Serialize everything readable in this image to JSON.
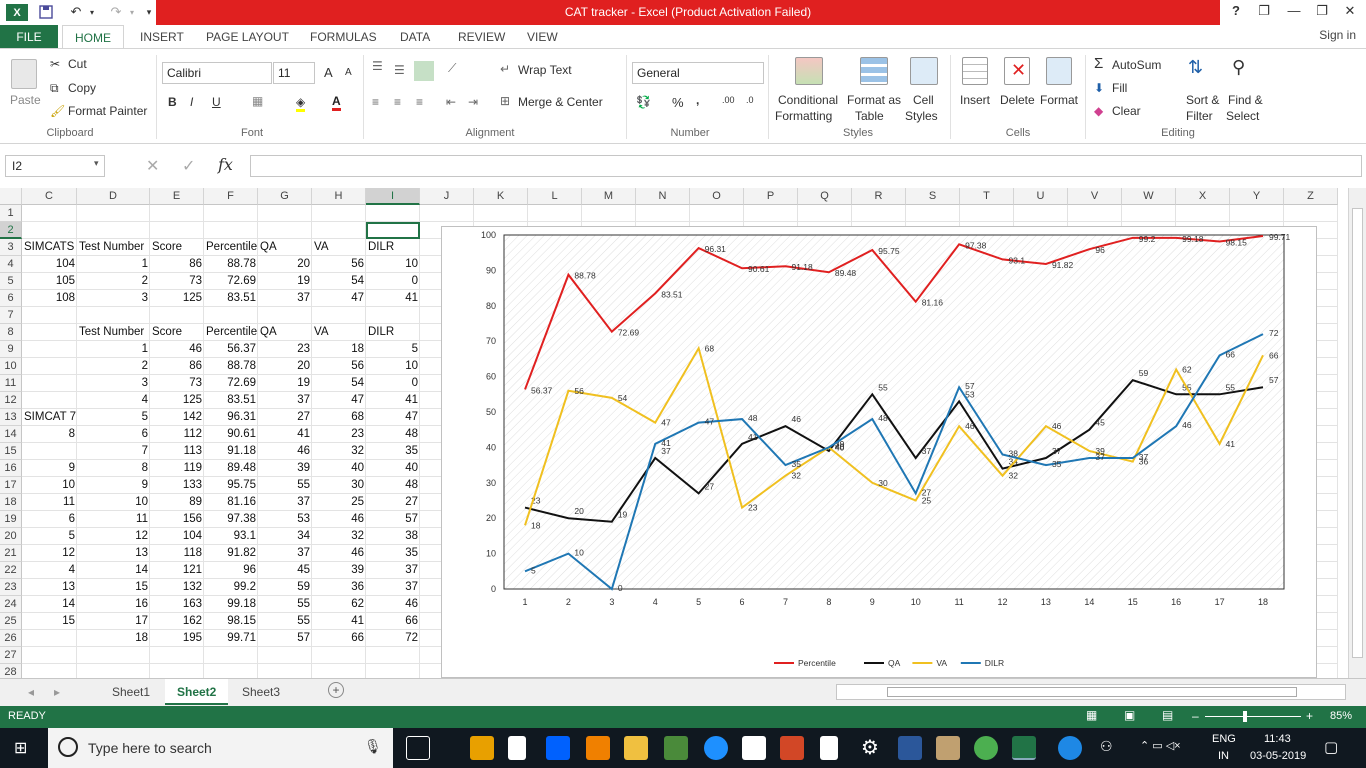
{
  "window": {
    "title": "CAT tracker  -  Excel (Product Activation Failed)",
    "help": "?",
    "minimize": "—",
    "restore": "❐",
    "close": "✕"
  },
  "tabs": {
    "file": "FILE",
    "items": [
      "HOME",
      "INSERT",
      "PAGE LAYOUT",
      "FORMULAS",
      "DATA",
      "REVIEW",
      "VIEW"
    ],
    "signin": "Sign in"
  },
  "ribbon": {
    "clipboard": {
      "label": "Clipboard",
      "paste": "Paste",
      "cut": "Cut",
      "copy": "Copy",
      "format_painter": "Format Painter"
    },
    "font": {
      "label": "Font",
      "name": "Calibri",
      "size": "11",
      "bold": "B",
      "italic": "I",
      "underline": "U",
      "grow": "A",
      "shrink": "A"
    },
    "alignment": {
      "label": "Alignment",
      "wrap": "Wrap Text",
      "merge": "Merge & Center"
    },
    "number": {
      "label": "Number",
      "format": "General",
      "percent": "%",
      "comma": ",",
      "inc": ".00",
      "dec": ".0"
    },
    "styles": {
      "label": "Styles",
      "conditional": [
        "Conditional",
        "Formatting"
      ],
      "table": [
        "Format as",
        "Table"
      ],
      "cell": [
        "Cell",
        "Styles"
      ]
    },
    "cells": {
      "label": "Cells",
      "insert": "Insert",
      "delete": "Delete",
      "format": "Format"
    },
    "editing": {
      "label": "Editing",
      "autosum": "AutoSum",
      "fill": "Fill",
      "clear": "Clear",
      "sort": [
        "Sort &",
        "Filter"
      ],
      "find": [
        "Find &",
        "Select"
      ]
    }
  },
  "formula_bar": {
    "name_box": "I2",
    "fx": "fx",
    "cancel": "✕",
    "enter": "✓",
    "value": ""
  },
  "columns": [
    "C",
    "D",
    "E",
    "F",
    "G",
    "H",
    "I",
    "J",
    "K",
    "L",
    "M",
    "N",
    "O",
    "P",
    "Q",
    "R",
    "S",
    "T",
    "U",
    "V",
    "W",
    "X",
    "Y",
    "Z"
  ],
  "rows": [
    "1",
    "2",
    "3",
    "4",
    "5",
    "6",
    "7",
    "8",
    "9",
    "10",
    "11",
    "12",
    "13",
    "14",
    "15",
    "16",
    "17",
    "18",
    "19",
    "20",
    "21",
    "22",
    "23",
    "24",
    "25",
    "26",
    "27",
    "28"
  ],
  "cells": {
    "r3": [
      "SIMCATS",
      "Test Number",
      "Score",
      "Percentile",
      "QA",
      "VA",
      "DILR"
    ],
    "r4": [
      "104",
      "1",
      "86",
      "88.78",
      "20",
      "56",
      "10"
    ],
    "r5": [
      "105",
      "2",
      "73",
      "72.69",
      "19",
      "54",
      "0"
    ],
    "r6": [
      "108",
      "3",
      "125",
      "83.51",
      "37",
      "47",
      "41"
    ],
    "r8": [
      "",
      "Test Number",
      "Score",
      "Percentile",
      "QA",
      "VA",
      "DILR"
    ],
    "table": [
      [
        "",
        "1",
        "46",
        "56.37",
        "23",
        "18",
        "5"
      ],
      [
        "",
        "2",
        "86",
        "88.78",
        "20",
        "56",
        "10"
      ],
      [
        "",
        "3",
        "73",
        "72.69",
        "19",
        "54",
        "0"
      ],
      [
        "",
        "4",
        "125",
        "83.51",
        "37",
        "47",
        "41"
      ],
      [
        "SIMCAT 7",
        "5",
        "142",
        "96.31",
        "27",
        "68",
        "47"
      ],
      [
        "8",
        "6",
        "112",
        "90.61",
        "41",
        "23",
        "48"
      ],
      [
        "",
        "7",
        "113",
        "91.18",
        "46",
        "32",
        "35"
      ],
      [
        "9",
        "8",
        "119",
        "89.48",
        "39",
        "40",
        "40"
      ],
      [
        "10",
        "9",
        "133",
        "95.75",
        "55",
        "30",
        "48"
      ],
      [
        "11",
        "10",
        "89",
        "81.16",
        "37",
        "25",
        "27"
      ],
      [
        "6",
        "11",
        "156",
        "97.38",
        "53",
        "46",
        "57"
      ],
      [
        "5",
        "12",
        "104",
        "93.1",
        "34",
        "32",
        "38"
      ],
      [
        "12",
        "13",
        "118",
        "91.82",
        "37",
        "46",
        "35"
      ],
      [
        "4",
        "14",
        "121",
        "96",
        "45",
        "39",
        "37"
      ],
      [
        "13",
        "15",
        "132",
        "99.2",
        "59",
        "36",
        "37"
      ],
      [
        "14",
        "16",
        "163",
        "99.18",
        "55",
        "62",
        "46"
      ],
      [
        "15",
        "17",
        "162",
        "98.15",
        "55",
        "41",
        "66"
      ],
      [
        "",
        "18",
        "195",
        "99.71",
        "57",
        "66",
        "72"
      ]
    ]
  },
  "chart_data": {
    "type": "line",
    "x": [
      1,
      2,
      3,
      4,
      5,
      6,
      7,
      8,
      9,
      10,
      11,
      12,
      13,
      14,
      15,
      16,
      17,
      18
    ],
    "ylim": [
      0,
      100
    ],
    "yticks": [
      0,
      10,
      20,
      30,
      40,
      50,
      60,
      70,
      80,
      90,
      100
    ],
    "grid": false,
    "legend": "bottom",
    "series": [
      {
        "name": "Percentile",
        "color": "#e02020",
        "values": [
          56.37,
          88.78,
          72.69,
          83.51,
          96.31,
          90.61,
          91.18,
          89.48,
          95.75,
          81.16,
          97.38,
          93.1,
          91.82,
          96,
          99.2,
          99.18,
          98.15,
          99.71
        ]
      },
      {
        "name": "QA",
        "color": "#111111",
        "values": [
          23,
          20,
          19,
          37,
          27,
          41,
          46,
          39,
          55,
          37,
          53,
          34,
          37,
          45,
          59,
          55,
          55,
          57
        ]
      },
      {
        "name": "VA",
        "color": "#f0c020",
        "values": [
          18,
          56,
          54,
          47,
          68,
          23,
          32,
          40,
          30,
          25,
          46,
          32,
          46,
          39,
          36,
          62,
          41,
          66
        ]
      },
      {
        "name": "DILR",
        "color": "#1f77b4",
        "values": [
          5,
          10,
          0,
          41,
          47,
          48,
          35,
          40,
          48,
          27,
          57,
          38,
          35,
          37,
          37,
          46,
          66,
          72
        ]
      }
    ]
  },
  "sheets": {
    "items": [
      "Sheet1",
      "Sheet2",
      "Sheet3"
    ],
    "active": 1,
    "add": "+"
  },
  "status": {
    "state": "READY",
    "zoom": "85%",
    "minus": "–",
    "plus": "+"
  },
  "taskbar": {
    "search_placeholder": "Type here to search",
    "lang_top": "ENG",
    "lang_bottom": "IN",
    "time": "11:43",
    "date": "03-05-2019"
  }
}
